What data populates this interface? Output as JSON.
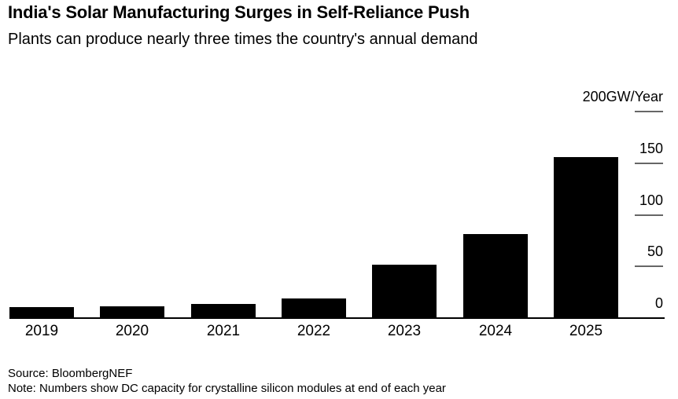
{
  "header": {
    "title": "India's Solar Manufacturing Surges in Self-Reliance Push",
    "subtitle": "Plants can produce nearly three times the country's annual demand"
  },
  "chart_data": {
    "type": "bar",
    "categories": [
      "2019",
      "2020",
      "2021",
      "2022",
      "2023",
      "2024",
      "2025"
    ],
    "values": [
      10,
      11,
      13,
      18,
      51,
      81,
      155
    ],
    "title": "India's Solar Manufacturing Surges in Self-Reliance Push",
    "subtitle": "Plants can produce nearly three times the country's annual demand",
    "xlabel": "",
    "ylabel": "GW/Year",
    "ylim": [
      0,
      200
    ],
    "grid": false,
    "legend": "none",
    "tick_side": "right",
    "y_axis": {
      "ticks": [
        {
          "label": "200GW/Year",
          "value": 200
        },
        {
          "label": "150",
          "value": 150
        },
        {
          "label": "100",
          "value": 100
        },
        {
          "label": "50",
          "value": 50
        },
        {
          "label": "0",
          "value": 0
        }
      ]
    },
    "colors": {
      "bar": "#000000",
      "axis_line": "#000000",
      "tick_dash": "#666666",
      "text": "#000000",
      "background": "#ffffff"
    }
  },
  "footer": {
    "source": "Source: BloombergNEF",
    "note": "Note: Numbers show DC capacity for crystalline silicon modules at end of each year"
  }
}
